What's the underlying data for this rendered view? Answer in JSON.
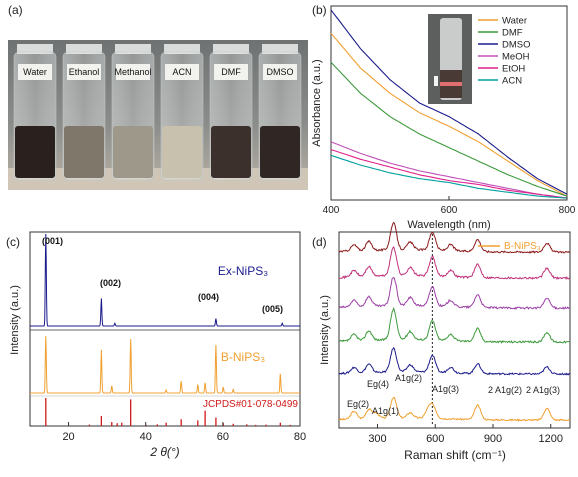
{
  "panels": {
    "a": {
      "label": "(a)",
      "vials": [
        "Water",
        "Ethanol",
        "Methanol",
        "ACN",
        "DMF",
        "DMSO"
      ],
      "vial_liquid_colors": [
        "#2a201e",
        "#7f786a",
        "#9d9889",
        "#c7c1ad",
        "#3b302c",
        "#302624"
      ]
    },
    "b": {
      "label": "(b)",
      "xlabel": "Wavelength (nm)",
      "ylabel": "Absorbance (a.u.)",
      "x_ticks": [
        "400",
        "600",
        "800"
      ],
      "legend": [
        "Water",
        "DMF",
        "DMSO",
        "MeOH",
        "EtOH",
        "ACN"
      ]
    },
    "c": {
      "label": "(c)",
      "xlabel": "2 θ(°)",
      "ylabel": "Intensity (a.u.)",
      "x_ticks": [
        "20",
        "40",
        "60",
        "80"
      ],
      "upper_series": "Ex-NiPS₃",
      "lower_series": "B-NiPS₃",
      "reference": "JCPDS#01-078-0499",
      "peak_labels": [
        "(001)",
        "(002)",
        "(004)",
        "(005)"
      ]
    },
    "d": {
      "label": "(d)",
      "xlabel": "Raman shift (cm⁻¹)",
      "ylabel": "Intensity (a.u.)",
      "x_ticks": [
        "300",
        "600",
        "900",
        "1200"
      ],
      "legend": "B-NiPS₃",
      "mode_labels": [
        "Eg(2)",
        "Eg(4)",
        "A1g(2)",
        "A1g(1)",
        "A1g(3)",
        "2 A1g(2)",
        "2 A1g(3)"
      ]
    }
  },
  "chart_data": [
    {
      "type": "line",
      "panel": "b",
      "xlabel": "Wavelength (nm)",
      "ylabel": "Absorbance (a.u.)",
      "xlim": [
        400,
        800
      ],
      "ylim": [
        0,
        1
      ],
      "grid": false,
      "legend_position": "top-right",
      "x": [
        400,
        450,
        500,
        550,
        600,
        650,
        700,
        750,
        800
      ],
      "series": [
        {
          "name": "Water",
          "color": "#f0a030",
          "values": [
            0.86,
            0.68,
            0.55,
            0.45,
            0.38,
            0.3,
            0.2,
            0.1,
            0.02
          ]
        },
        {
          "name": "DMF",
          "color": "#3c9a3c",
          "values": [
            0.71,
            0.55,
            0.43,
            0.34,
            0.27,
            0.2,
            0.13,
            0.07,
            0.02
          ]
        },
        {
          "name": "DMSO",
          "color": "#1a1a8c",
          "values": [
            0.98,
            0.78,
            0.62,
            0.5,
            0.43,
            0.34,
            0.22,
            0.11,
            0.03
          ]
        },
        {
          "name": "MeOH",
          "color": "#c050b8",
          "values": [
            0.3,
            0.24,
            0.19,
            0.15,
            0.12,
            0.09,
            0.06,
            0.03,
            0.01
          ]
        },
        {
          "name": "EtOH",
          "color": "#e0208c",
          "values": [
            0.26,
            0.21,
            0.17,
            0.13,
            0.1,
            0.08,
            0.05,
            0.03,
            0.01
          ]
        },
        {
          "name": "ACN",
          "color": "#00a0a0",
          "values": [
            0.23,
            0.18,
            0.14,
            0.11,
            0.09,
            0.06,
            0.04,
            0.02,
            0.01
          ]
        }
      ]
    },
    {
      "type": "line",
      "panel": "c",
      "xlabel": "2 θ(°)",
      "ylabel": "Intensity (a.u.)",
      "xlim": [
        10,
        80
      ],
      "grid": false,
      "x_ticks": [
        20,
        40,
        60,
        80
      ],
      "series": [
        {
          "name": "Ex-NiPS₃",
          "color": "#1a1a8c",
          "peaks": [
            [
              14.1,
              1.0
            ],
            [
              28.5,
              0.3
            ],
            [
              32.0,
              0.03
            ],
            [
              58.2,
              0.08
            ],
            [
              75.4,
              0.03
            ]
          ]
        },
        {
          "name": "B-NiPS₃",
          "color": "#f0a030",
          "peaks": [
            [
              14.1,
              0.95
            ],
            [
              28.5,
              0.72
            ],
            [
              31.2,
              0.12
            ],
            [
              36.1,
              0.9
            ],
            [
              45.3,
              0.05
            ],
            [
              49.2,
              0.2
            ],
            [
              53.5,
              0.14
            ],
            [
              55.4,
              0.17
            ],
            [
              58.2,
              0.8
            ],
            [
              60.1,
              0.1
            ],
            [
              62.7,
              0.06
            ],
            [
              74.9,
              0.32
            ]
          ]
        },
        {
          "name": "JCPDS#01-078-0499",
          "color": "#d01818",
          "sticks": [
            [
              14.1,
              1.0
            ],
            [
              25.4,
              0.05
            ],
            [
              28.5,
              0.36
            ],
            [
              31.2,
              0.14
            ],
            [
              32.6,
              0.1
            ],
            [
              33.8,
              0.12
            ],
            [
              36.1,
              0.95
            ],
            [
              40.1,
              0.04
            ],
            [
              43.0,
              0.06
            ],
            [
              45.3,
              0.12
            ],
            [
              49.2,
              0.24
            ],
            [
              53.5,
              0.2
            ],
            [
              55.4,
              0.55
            ],
            [
              58.2,
              0.3
            ],
            [
              60.1,
              0.1
            ],
            [
              62.7,
              0.08
            ],
            [
              66.2,
              0.06
            ],
            [
              68.5,
              0.04
            ],
            [
              71.2,
              0.05
            ],
            [
              74.9,
              0.12
            ],
            [
              77.5,
              0.04
            ]
          ]
        }
      ]
    },
    {
      "type": "line",
      "panel": "d",
      "xlabel": "Raman shift (cm⁻¹)",
      "ylabel": "Intensity (a.u.)",
      "xlim": [
        100,
        1300
      ],
      "grid": false,
      "legend_position": "top-right",
      "reference_line_x": 585,
      "series": [
        {
          "name": "B-NiPS₃",
          "color": "#f0a030",
          "peaks": [
            [
              178,
              0.3
            ],
            [
              255,
              0.35
            ],
            [
              292,
              0.2
            ],
            [
              383,
              0.8
            ],
            [
              470,
              0.2
            ],
            [
              565,
              0.35
            ],
            [
              590,
              0.42
            ],
            [
              820,
              0.55
            ],
            [
              1180,
              0.45
            ]
          ]
        },
        {
          "name": "",
          "color": "#1a1a8c",
          "peaks": [
            [
              178,
              0.2
            ],
            [
              255,
              0.3
            ],
            [
              383,
              0.85
            ],
            [
              470,
              0.25
            ],
            [
              585,
              0.6
            ],
            [
              680,
              0.2
            ],
            [
              820,
              0.35
            ],
            [
              1180,
              0.25
            ]
          ]
        },
        {
          "name": "",
          "color": "#3c9a3c",
          "peaks": [
            [
              178,
              0.2
            ],
            [
              255,
              0.3
            ],
            [
              383,
              0.95
            ],
            [
              470,
              0.25
            ],
            [
              585,
              0.6
            ],
            [
              680,
              0.2
            ],
            [
              820,
              0.4
            ],
            [
              1180,
              0.3
            ]
          ]
        },
        {
          "name": "",
          "color": "#9b3fa5",
          "peaks": [
            [
              178,
              0.2
            ],
            [
              255,
              0.3
            ],
            [
              383,
              0.9
            ],
            [
              470,
              0.25
            ],
            [
              585,
              0.6
            ],
            [
              680,
              0.2
            ],
            [
              820,
              0.4
            ],
            [
              1180,
              0.3
            ]
          ]
        },
        {
          "name": "",
          "color": "#c0307a",
          "peaks": [
            [
              178,
              0.2
            ],
            [
              255,
              0.3
            ],
            [
              383,
              0.9
            ],
            [
              470,
              0.25
            ],
            [
              585,
              0.6
            ],
            [
              680,
              0.2
            ],
            [
              820,
              0.4
            ],
            [
              1180,
              0.3
            ]
          ]
        },
        {
          "name": "",
          "color": "#8b1a1a",
          "peaks": [
            [
              178,
              0.2
            ],
            [
              255,
              0.3
            ],
            [
              383,
              0.9
            ],
            [
              470,
              0.25
            ],
            [
              585,
              0.6
            ],
            [
              680,
              0.2
            ],
            [
              820,
              0.4
            ],
            [
              1180,
              0.3
            ]
          ]
        }
      ]
    }
  ]
}
